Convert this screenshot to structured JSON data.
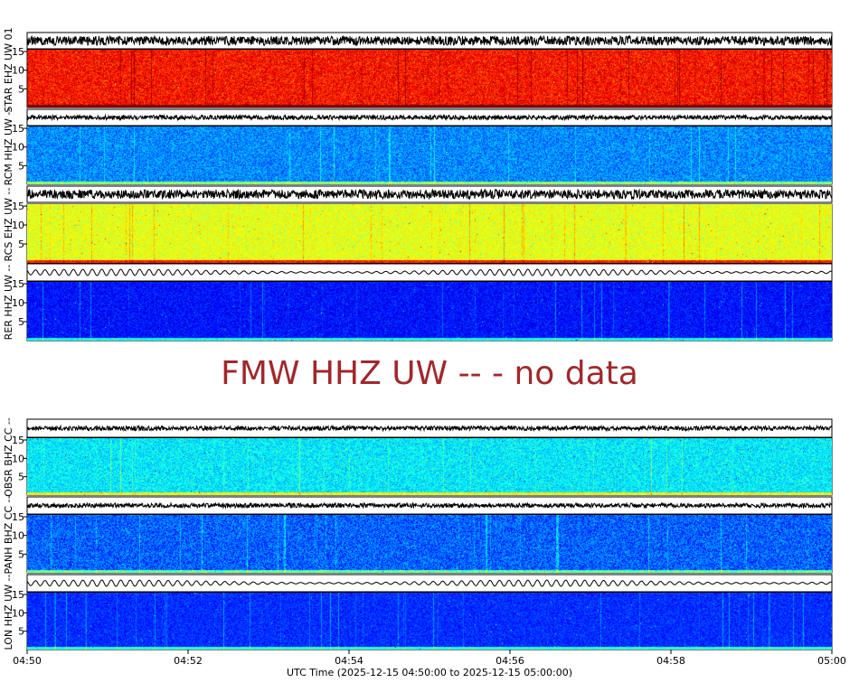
{
  "chart_data": {
    "type": "heatmap",
    "xlabel": "UTC Time (2025-12-15 04:50:00 to 2025-12-15 05:00:00)",
    "x_ticks": [
      "04:50",
      "04:52",
      "04:54",
      "04:56",
      "04:58",
      "05:00"
    ],
    "y_ticks": [
      "5",
      "10",
      "15"
    ],
    "ylim": [
      0,
      15.5
    ],
    "colormap": "jet",
    "panels": [
      {
        "label": "STAR EHZ UW 01",
        "has_data": true
      },
      {
        "label": "RCM HHZ UW --",
        "has_data": true
      },
      {
        "label": "RCS EHZ UW --",
        "has_data": true
      },
      {
        "label": "RER HHZ UW --",
        "has_data": true
      },
      {
        "label": "FMW HHZ UW -- - no data",
        "has_data": false
      },
      {
        "label": "OBSR BHZ CC --",
        "has_data": true
      },
      {
        "label": "PANH BHZ CC --",
        "has_data": true
      },
      {
        "label": "LON HHZ UW --",
        "has_data": true
      }
    ]
  }
}
